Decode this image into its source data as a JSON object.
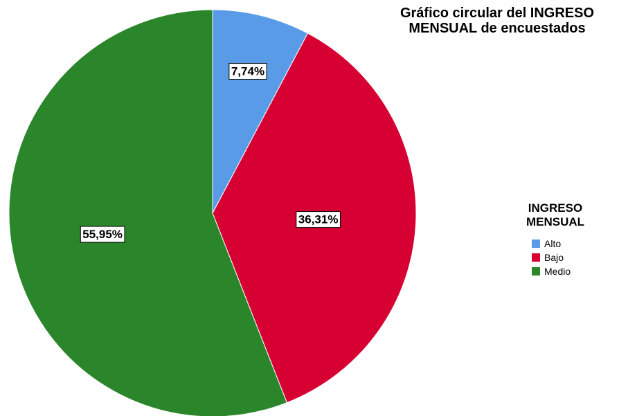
{
  "chart_data": {
    "type": "pie",
    "title_lines": [
      "Gráfico circular del INGRESO",
      "MENSUAL de encuestados"
    ],
    "legend_title_lines": [
      "INGRESO",
      "MENSUAL"
    ],
    "legend_position": "right",
    "categories": [
      "Alto",
      "Bajo",
      "Medio"
    ],
    "values": [
      7.74,
      36.31,
      55.95
    ],
    "labels": [
      "7,74%",
      "36,31%",
      "55,95%"
    ],
    "colors": [
      "#5a9be8",
      "#d70032",
      "#2b862b"
    ]
  }
}
